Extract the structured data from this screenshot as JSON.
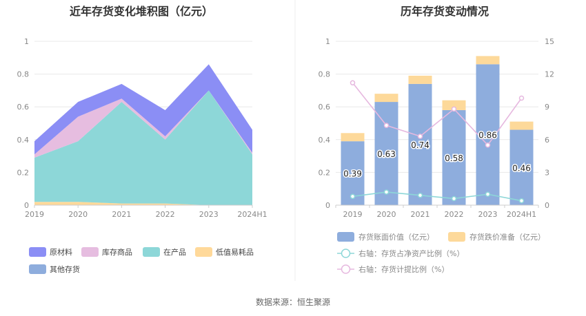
{
  "source_text": "数据来源：恒生聚源",
  "chart_data": [
    {
      "type": "area",
      "title": "近年存货变化堆积图（亿元）",
      "categories": [
        "2019",
        "2020",
        "2021",
        "2022",
        "2023",
        "2024H1"
      ],
      "ylim": [
        0,
        1
      ],
      "yticks": [
        "0",
        "0.2",
        "0.4",
        "0.6",
        "0.8",
        "1"
      ],
      "grid": true,
      "legend_position": "bottom",
      "series": [
        {
          "name": "低值易耗品",
          "color": "#ffd99a",
          "values": [
            0.02,
            0.02,
            0.01,
            0.01,
            0.0,
            0.0
          ]
        },
        {
          "name": "在产品",
          "color": "#8dd7d8",
          "values": [
            0.27,
            0.37,
            0.62,
            0.39,
            0.7,
            0.31
          ]
        },
        {
          "name": "库存商品",
          "color": "#e6bde0",
          "values": [
            0.02,
            0.15,
            0.02,
            0.02,
            0.0,
            0.01
          ]
        },
        {
          "name": "原材料",
          "color": "#8b8ef5",
          "values": [
            0.08,
            0.09,
            0.09,
            0.16,
            0.16,
            0.14
          ]
        },
        {
          "name": "其他存货",
          "color": "#8eaddd",
          "values": [
            0.0,
            0.0,
            0.0,
            0.0,
            0.0,
            0.0
          ]
        }
      ],
      "legend_order": [
        "原材料",
        "库存商品",
        "在产品",
        "低值易耗品",
        "其他存货"
      ]
    },
    {
      "type": "bar",
      "title": "历年存货变动情况",
      "categories": [
        "2019",
        "2020",
        "2021",
        "2022",
        "2023",
        "2024H1"
      ],
      "ylim": [
        0,
        1
      ],
      "yticks": [
        "0",
        "0.2",
        "0.4",
        "0.6",
        "0.8",
        "1"
      ],
      "y2lim": [
        0,
        15
      ],
      "y2ticks": [
        "0",
        "3",
        "6",
        "9",
        "12",
        "15"
      ],
      "grid": true,
      "legend_position": "bottom",
      "series": [
        {
          "name": "存货账面价值（亿元）",
          "kind": "bar",
          "color": "#8eaddd",
          "values": [
            0.39,
            0.63,
            0.74,
            0.58,
            0.86,
            0.46
          ],
          "labels": [
            "0.39",
            "0.63",
            "0.74",
            "0.58",
            "0.86",
            "0.46"
          ]
        },
        {
          "name": "存货跌价准备（亿元）",
          "kind": "bar",
          "color": "#fdd99a",
          "values": [
            0.05,
            0.05,
            0.05,
            0.06,
            0.05,
            0.05
          ]
        },
        {
          "name": "右轴：存货占净资产比例（%）",
          "kind": "line",
          "axis": "right",
          "color": "#8dd7d8",
          "values": [
            0.8,
            1.2,
            0.9,
            0.6,
            1.0,
            0.4
          ]
        },
        {
          "name": "右轴：存货计提比例（%）",
          "kind": "line",
          "axis": "right",
          "color": "#e6b8df",
          "values": [
            11.2,
            7.3,
            6.3,
            8.8,
            5.5,
            9.8
          ]
        }
      ]
    }
  ]
}
